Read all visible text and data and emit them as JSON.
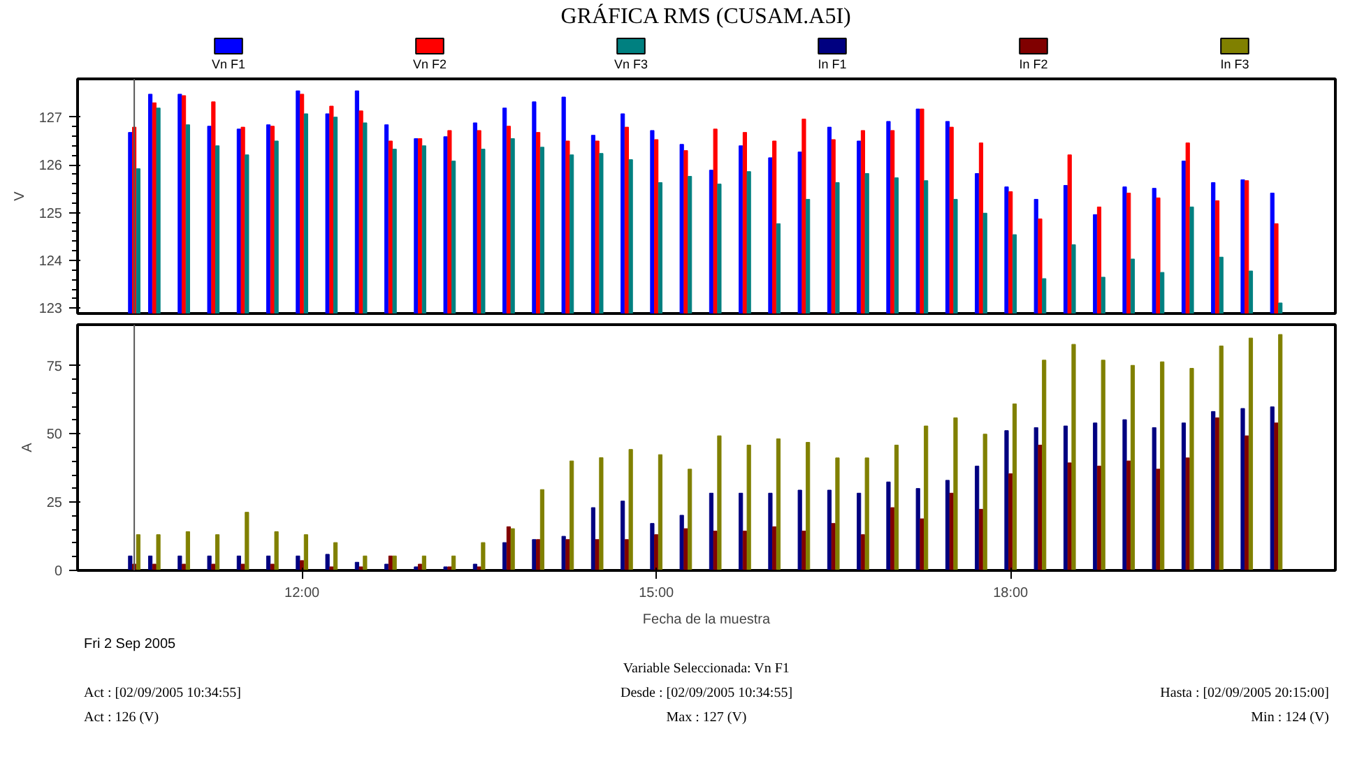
{
  "chart_data": [
    {
      "type": "bar",
      "title": "GRÁFICA RMS (CUSAM.A5I)",
      "ylabel": "V",
      "legend": "top",
      "tick_labels": "y",
      "grid": false,
      "x": [
        10.58,
        10.75,
        11.0,
        11.25,
        11.5,
        11.75,
        12.0,
        12.25,
        12.5,
        12.75,
        13.0,
        13.25,
        13.5,
        13.75,
        14.0,
        14.25,
        14.5,
        14.75,
        15.0,
        15.25,
        15.5,
        15.75,
        16.0,
        16.25,
        16.5,
        16.75,
        17.0,
        17.25,
        17.5,
        17.75,
        18.0,
        18.25,
        18.5,
        18.75,
        19.0,
        19.25,
        19.5,
        19.75,
        20.0,
        20.25
      ],
      "xlim": [
        10.1,
        20.75
      ],
      "ylim": [
        122.89,
        127.8
      ],
      "yticks": [
        123,
        124,
        125,
        126,
        127
      ],
      "ref_lines": [
        {
          "axis": "x",
          "value": 10.58,
          "color": "#555555"
        }
      ],
      "series": [
        {
          "name": "Vn F1",
          "color": "#0000ff",
          "values": [
            126.68,
            127.48,
            127.48,
            126.81,
            126.75,
            126.84,
            127.55,
            127.07,
            127.55,
            126.84,
            126.55,
            126.59,
            126.88,
            127.19,
            127.32,
            127.42,
            126.62,
            127.07,
            126.72,
            126.43,
            125.89,
            126.4,
            126.15,
            126.27,
            126.79,
            126.5,
            126.91,
            127.17,
            126.91,
            125.82,
            125.54,
            125.28,
            125.57,
            124.96,
            125.54,
            125.51,
            126.08,
            125.63,
            125.69,
            125.41
          ]
        },
        {
          "name": "Vn F2",
          "color": "#ff0000",
          "values": [
            126.79,
            127.3,
            127.45,
            127.32,
            126.79,
            126.81,
            127.48,
            127.23,
            127.13,
            126.5,
            126.55,
            126.72,
            126.72,
            126.81,
            126.68,
            126.5,
            126.5,
            126.79,
            126.53,
            126.3,
            126.75,
            126.68,
            126.5,
            126.96,
            126.53,
            126.72,
            126.72,
            127.17,
            126.79,
            126.46,
            125.44,
            124.87,
            126.21,
            125.12,
            125.41,
            125.31,
            126.46,
            125.25,
            125.67,
            124.77
          ]
        },
        {
          "name": "Vn F3",
          "color": "#008080",
          "values": [
            125.92,
            127.19,
            126.84,
            126.4,
            126.21,
            126.5,
            127.07,
            127.0,
            126.88,
            126.33,
            126.4,
            126.08,
            126.33,
            126.55,
            126.37,
            126.21,
            126.24,
            126.11,
            125.63,
            125.76,
            125.6,
            125.86,
            124.77,
            125.28,
            125.63,
            125.82,
            125.73,
            125.67,
            125.28,
            124.99,
            124.54,
            123.62,
            124.33,
            123.65,
            124.03,
            123.75,
            125.12,
            124.07,
            123.78,
            123.11
          ]
        }
      ]
    },
    {
      "type": "bar",
      "xlabel": "Fecha de la muestra",
      "ylabel": "A",
      "legend": "top",
      "grid": false,
      "x": [
        10.58,
        10.75,
        11.0,
        11.25,
        11.5,
        11.75,
        12.0,
        12.25,
        12.5,
        12.75,
        13.0,
        13.25,
        13.5,
        13.75,
        14.0,
        14.25,
        14.5,
        14.75,
        15.0,
        15.25,
        15.5,
        15.75,
        16.0,
        16.25,
        16.5,
        16.75,
        17.0,
        17.25,
        17.5,
        17.75,
        18.0,
        18.25,
        18.5,
        18.75,
        19.0,
        19.25,
        19.5,
        19.75,
        20.0,
        20.25
      ],
      "xlim": [
        10.1,
        20.75
      ],
      "xticks": [
        {
          "value": 12,
          "label": "12:00"
        },
        {
          "value": 15,
          "label": "15:00"
        },
        {
          "value": 18,
          "label": "18:00"
        }
      ],
      "ylim": [
        0,
        90
      ],
      "yticks": [
        0,
        25,
        50,
        75
      ],
      "ref_lines": [
        {
          "axis": "x",
          "value": 10.58,
          "color": "#555555"
        }
      ],
      "series": [
        {
          "name": "In F1",
          "color": "#000080",
          "values": [
            5.3,
            5.3,
            5.3,
            5.3,
            5.3,
            5.3,
            5.3,
            5.9,
            3.0,
            2.3,
            1.3,
            1.3,
            2.3,
            10.2,
            11.3,
            12.5,
            23.0,
            25.4,
            17.2,
            20.2,
            28.3,
            28.3,
            28.3,
            29.4,
            29.4,
            28.3,
            32.4,
            30.0,
            33.0,
            38.2,
            51.2,
            52.3,
            52.9,
            54.0,
            55.2,
            52.3,
            54.0,
            58.2,
            59.3,
            59.9
          ]
        },
        {
          "name": "In F2",
          "color": "#800000",
          "values": [
            2.3,
            2.3,
            2.3,
            2.3,
            2.3,
            2.3,
            3.6,
            1.3,
            1.3,
            5.3,
            2.3,
            1.3,
            1.3,
            16.0,
            11.3,
            11.3,
            11.3,
            11.3,
            13.1,
            15.3,
            14.4,
            14.4,
            16.0,
            14.4,
            17.2,
            13.1,
            23.0,
            18.9,
            28.3,
            22.4,
            35.4,
            45.9,
            39.4,
            38.2,
            40.1,
            37.1,
            41.2,
            55.9,
            49.3,
            54.0
          ]
        },
        {
          "name": "In F3",
          "color": "#808000",
          "values": [
            13.1,
            13.1,
            14.2,
            13.1,
            21.3,
            14.2,
            13.1,
            10.2,
            5.3,
            5.3,
            5.3,
            5.3,
            10.2,
            15.3,
            29.6,
            40.1,
            41.3,
            44.3,
            42.4,
            37.1,
            49.3,
            45.9,
            48.2,
            46.9,
            41.2,
            41.2,
            45.9,
            52.9,
            55.9,
            49.9,
            61.0,
            77.0,
            82.8,
            77.0,
            75.1,
            76.4,
            74.0,
            82.2,
            85.1,
            86.4
          ]
        }
      ],
      "annotations": [
        "Fri 2 Sep 2005",
        "Variable Seleccionada: Vn F1",
        "Act : [02/09/2005 10:34:55]",
        "Desde : [02/09/2005 10:34:55]",
        "Hasta : [02/09/2005 20:15:00]",
        "Act : 126 (V)",
        "Max : 127 (V)",
        "Min : 124 (V)"
      ]
    }
  ]
}
